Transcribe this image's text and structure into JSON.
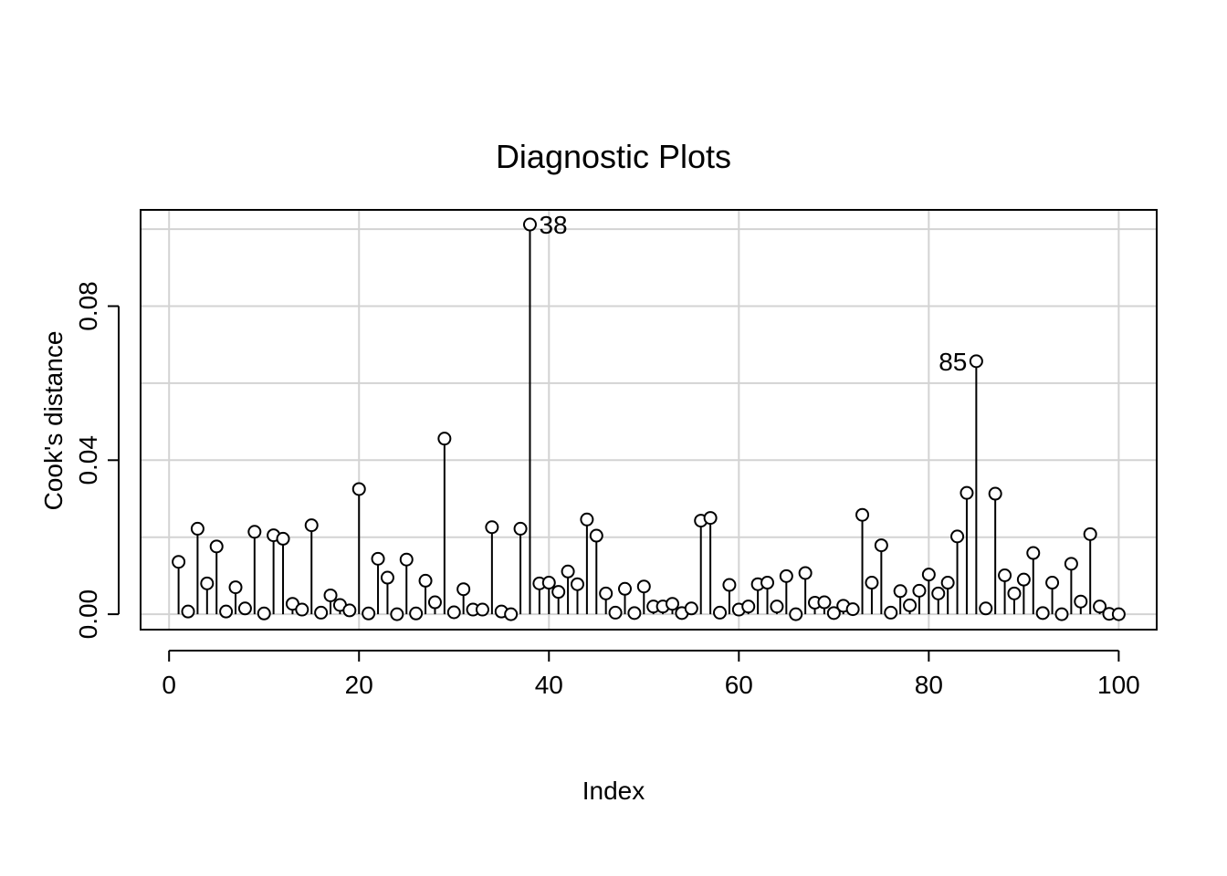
{
  "chart_data": {
    "type": "scatter",
    "style": "stem (type='h') with open circles",
    "title": "Diagnostic Plots",
    "xlabel": "Index",
    "ylabel": "Cook's distance",
    "xlim": [
      -3,
      104
    ],
    "ylim": [
      -0.004,
      0.105
    ],
    "xticks": [
      0,
      20,
      40,
      60,
      80,
      100
    ],
    "xtick_labels": [
      "0",
      "20",
      "40",
      "60",
      "80",
      "100"
    ],
    "yticks": [
      0.0,
      0.04,
      0.08
    ],
    "ytick_labels": [
      "0.00",
      "0.04",
      "0.08"
    ],
    "grid": true,
    "grid_y_extra": [
      0.02,
      0.06,
      0.1
    ],
    "labeled_points": [
      {
        "index": 38,
        "label": "38",
        "side": "right"
      },
      {
        "index": 85,
        "label": "85",
        "side": "left"
      }
    ],
    "x": [
      1,
      2,
      3,
      4,
      5,
      6,
      7,
      8,
      9,
      10,
      11,
      12,
      13,
      14,
      15,
      16,
      17,
      18,
      19,
      20,
      21,
      22,
      23,
      24,
      25,
      26,
      27,
      28,
      29,
      30,
      31,
      32,
      33,
      34,
      35,
      36,
      37,
      38,
      39,
      40,
      41,
      42,
      43,
      44,
      45,
      46,
      47,
      48,
      49,
      50,
      51,
      52,
      53,
      54,
      55,
      56,
      57,
      58,
      59,
      60,
      61,
      62,
      63,
      64,
      65,
      66,
      67,
      68,
      69,
      70,
      71,
      72,
      73,
      74,
      75,
      76,
      77,
      78,
      79,
      80,
      81,
      82,
      83,
      84,
      85,
      86,
      87,
      88,
      89,
      90,
      91,
      92,
      93,
      94,
      95,
      96,
      97,
      98,
      99,
      100
    ],
    "y": [
      0.0136,
      0.0007,
      0.0222,
      0.008,
      0.0176,
      0.0007,
      0.007,
      0.0015,
      0.0214,
      0.0002,
      0.0205,
      0.0196,
      0.0027,
      0.0012,
      0.0231,
      0.0004,
      0.0049,
      0.0024,
      0.001,
      0.0325,
      0.0002,
      0.0144,
      0.0095,
      0.0,
      0.0142,
      0.0002,
      0.0087,
      0.0031,
      0.0456,
      0.0005,
      0.0065,
      0.0012,
      0.0012,
      0.0226,
      0.0007,
      0.0,
      0.0222,
      0.1012,
      0.008,
      0.0082,
      0.0058,
      0.0111,
      0.0078,
      0.0246,
      0.0204,
      0.0054,
      0.0004,
      0.0066,
      0.0003,
      0.0072,
      0.002,
      0.002,
      0.0027,
      0.0003,
      0.0015,
      0.0243,
      0.025,
      0.0004,
      0.0076,
      0.0012,
      0.002,
      0.0078,
      0.0082,
      0.002,
      0.0099,
      0.0,
      0.0107,
      0.003,
      0.0031,
      0.0003,
      0.0022,
      0.0013,
      0.0258,
      0.0082,
      0.0179,
      0.0004,
      0.006,
      0.0023,
      0.0061,
      0.0103,
      0.0054,
      0.0082,
      0.0202,
      0.0315,
      0.0657,
      0.0015,
      0.0313,
      0.0101,
      0.0054,
      0.009,
      0.0159,
      0.0003,
      0.0082,
      0.0,
      0.0131,
      0.0033,
      0.0208,
      0.002,
      0.0001,
      0.0
    ]
  }
}
